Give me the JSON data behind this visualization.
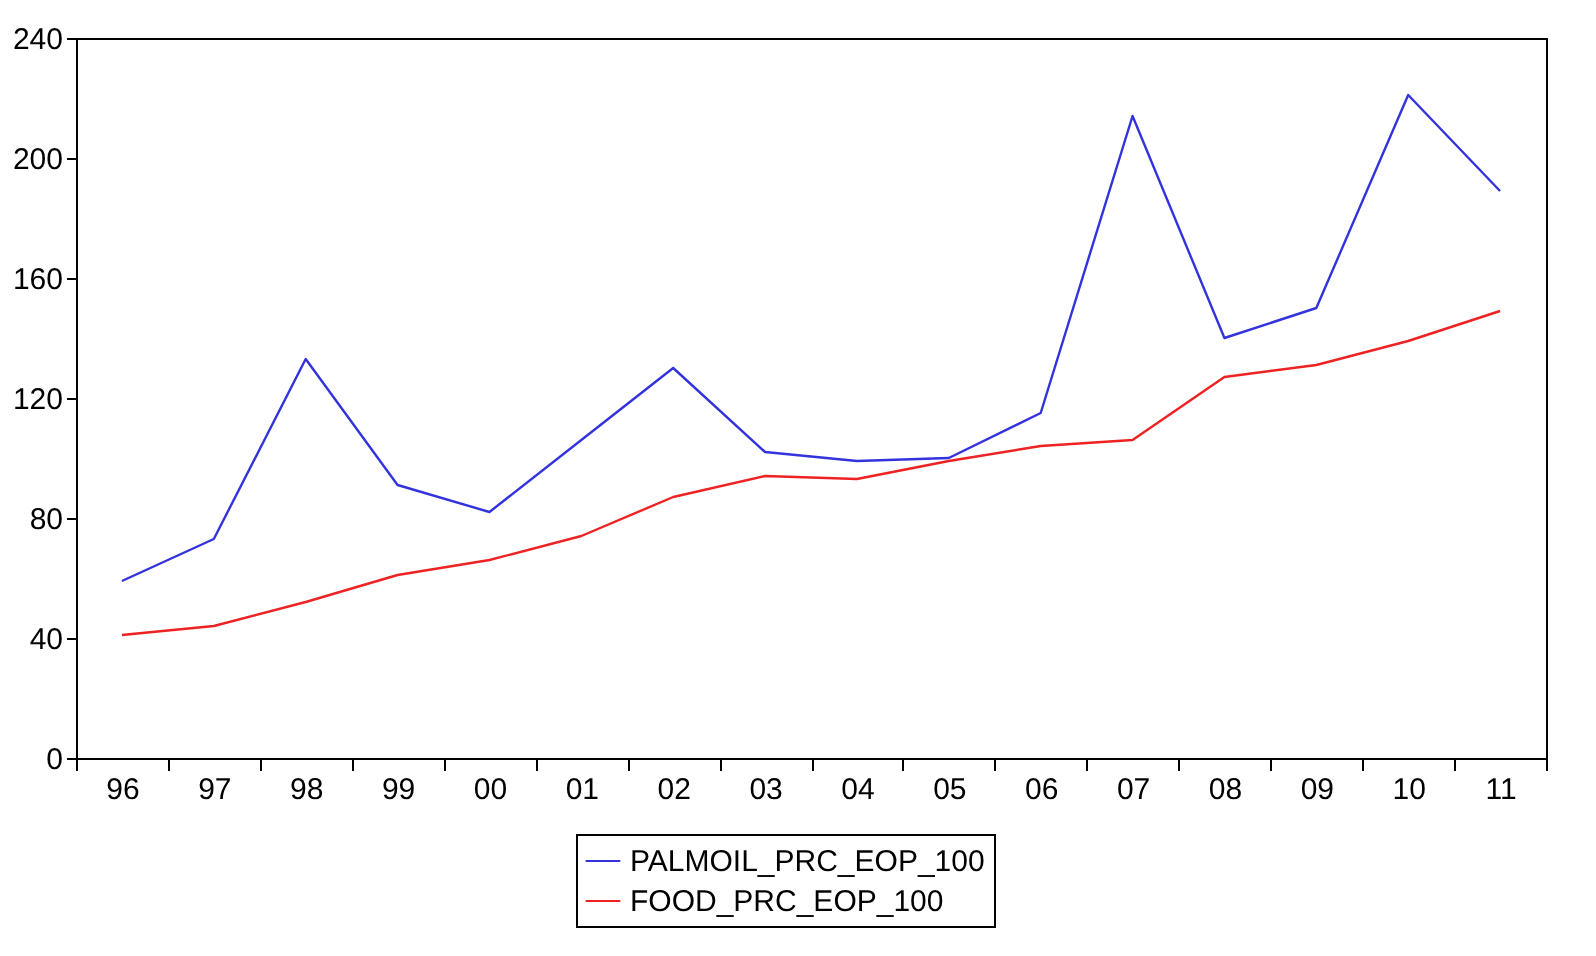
{
  "chart_data": {
    "type": "line",
    "categories": [
      "96",
      "97",
      "98",
      "99",
      "00",
      "01",
      "02",
      "03",
      "04",
      "05",
      "06",
      "07",
      "08",
      "09",
      "10",
      "11"
    ],
    "series": [
      {
        "name": "PALMOIL_PRC_EOP_100",
        "color": "#3333dd",
        "values": [
          59,
          73,
          133,
          91,
          82,
          106,
          130,
          102,
          99,
          100,
          115,
          214,
          140,
          150,
          221,
          189
        ]
      },
      {
        "name": "FOOD_PRC_EOP_100",
        "color": "#ee2222",
        "values": [
          41,
          44,
          52,
          61,
          66,
          74,
          87,
          94,
          93,
          99,
          104,
          106,
          127,
          131,
          139,
          149
        ]
      }
    ],
    "ylim": [
      0,
      240
    ],
    "yticks": [
      0,
      40,
      80,
      120,
      160,
      200,
      240
    ],
    "grid": false,
    "legend": "bottom",
    "marker": "none",
    "line_style": "solid"
  }
}
